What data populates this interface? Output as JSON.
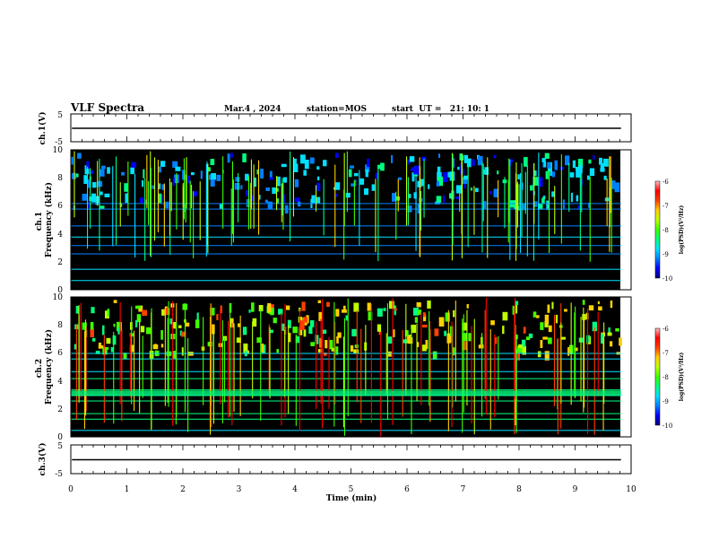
{
  "header": {
    "title": "VLF Spectra",
    "date": "Mar.4 , 2024",
    "station": "station=MOS",
    "start": "start  UT =   21: 10: 1"
  },
  "colors": {
    "background": "#000000",
    "trace": "#000000",
    "colormap": [
      "#00007a",
      "#0000ff",
      "#0080ff",
      "#00e0ff",
      "#00ff80",
      "#40ff00",
      "#c0ff00",
      "#ffd000",
      "#ff4000",
      "#ff0000",
      "#ffc0c0"
    ]
  },
  "chart_data": [
    {
      "type": "line",
      "name": "ch1-voltage",
      "ylabel": "ch.1(V)",
      "ylim": [
        -5,
        5
      ],
      "yticks": [
        "5",
        "-5"
      ],
      "xlim": [
        0,
        10
      ],
      "x": [
        0.02,
        9.82
      ],
      "y": [
        0,
        0
      ]
    },
    {
      "type": "heatmap",
      "name": "ch1-spectrogram",
      "ylabel": "ch.1\nFrequency (kHz)",
      "ylim": [
        0,
        10
      ],
      "yticks": [
        "0",
        "2",
        "4",
        "6",
        "8",
        "10"
      ],
      "xlim": [
        0,
        10
      ],
      "data_xrange": [
        0.0,
        9.82
      ],
      "colorbar": {
        "label": "log(PSD)(V²/Hz)",
        "range": [
          -10,
          -6
        ],
        "ticks": [
          "-6",
          "-7",
          "-8",
          "-9",
          "-10"
        ]
      }
    },
    {
      "type": "heatmap",
      "name": "ch2-spectrogram",
      "ylabel": "ch.2\nFrequency (kHz)",
      "ylim": [
        0,
        10
      ],
      "yticks": [
        "0",
        "2",
        "4",
        "6",
        "8",
        "10"
      ],
      "xlim": [
        0,
        10
      ],
      "data_xrange": [
        0.0,
        9.82
      ],
      "colorbar": {
        "label": "log(PSD)(V²/Hz)",
        "range": [
          -10,
          -6
        ],
        "ticks": [
          "-6",
          "-7",
          "-8",
          "-9",
          "-10"
        ]
      }
    },
    {
      "type": "line",
      "name": "ch3-voltage",
      "ylabel": "ch.3(V)",
      "ylim": [
        -5,
        5
      ],
      "yticks": [
        "5",
        "-5"
      ],
      "xlim": [
        0,
        10
      ],
      "x": [
        0.02,
        9.82
      ],
      "y": [
        0,
        0
      ],
      "xlabel": "Time (min)",
      "xticks": [
        "0",
        "1",
        "2",
        "3",
        "4",
        "5",
        "6",
        "7",
        "8",
        "9",
        "10"
      ]
    }
  ]
}
